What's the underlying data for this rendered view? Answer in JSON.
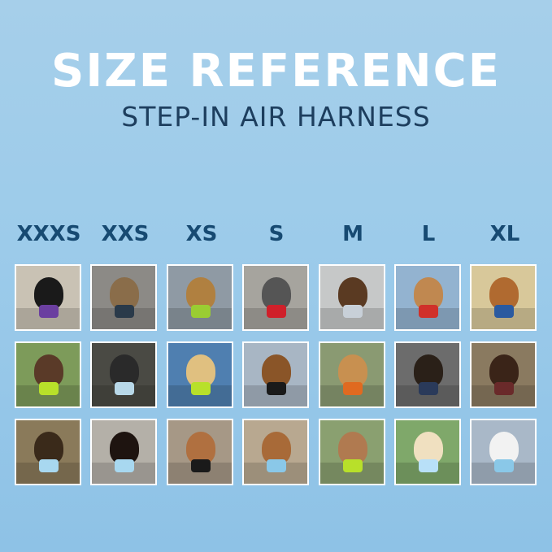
{
  "header": {
    "title": "SIZE REFERENCE",
    "subtitle": "STEP-IN AIR HARNESS"
  },
  "sizes": [
    "XXXS",
    "XXS",
    "XS",
    "S",
    "M",
    "L",
    "XL"
  ],
  "colors": {
    "background": "#9ccbea",
    "title": "#ffffff",
    "subtitle": "#1d3e5e",
    "size_label": "#174a72",
    "photo_border": "#ffffff"
  },
  "photo_grid": {
    "rows": 3,
    "columns": 7
  }
}
